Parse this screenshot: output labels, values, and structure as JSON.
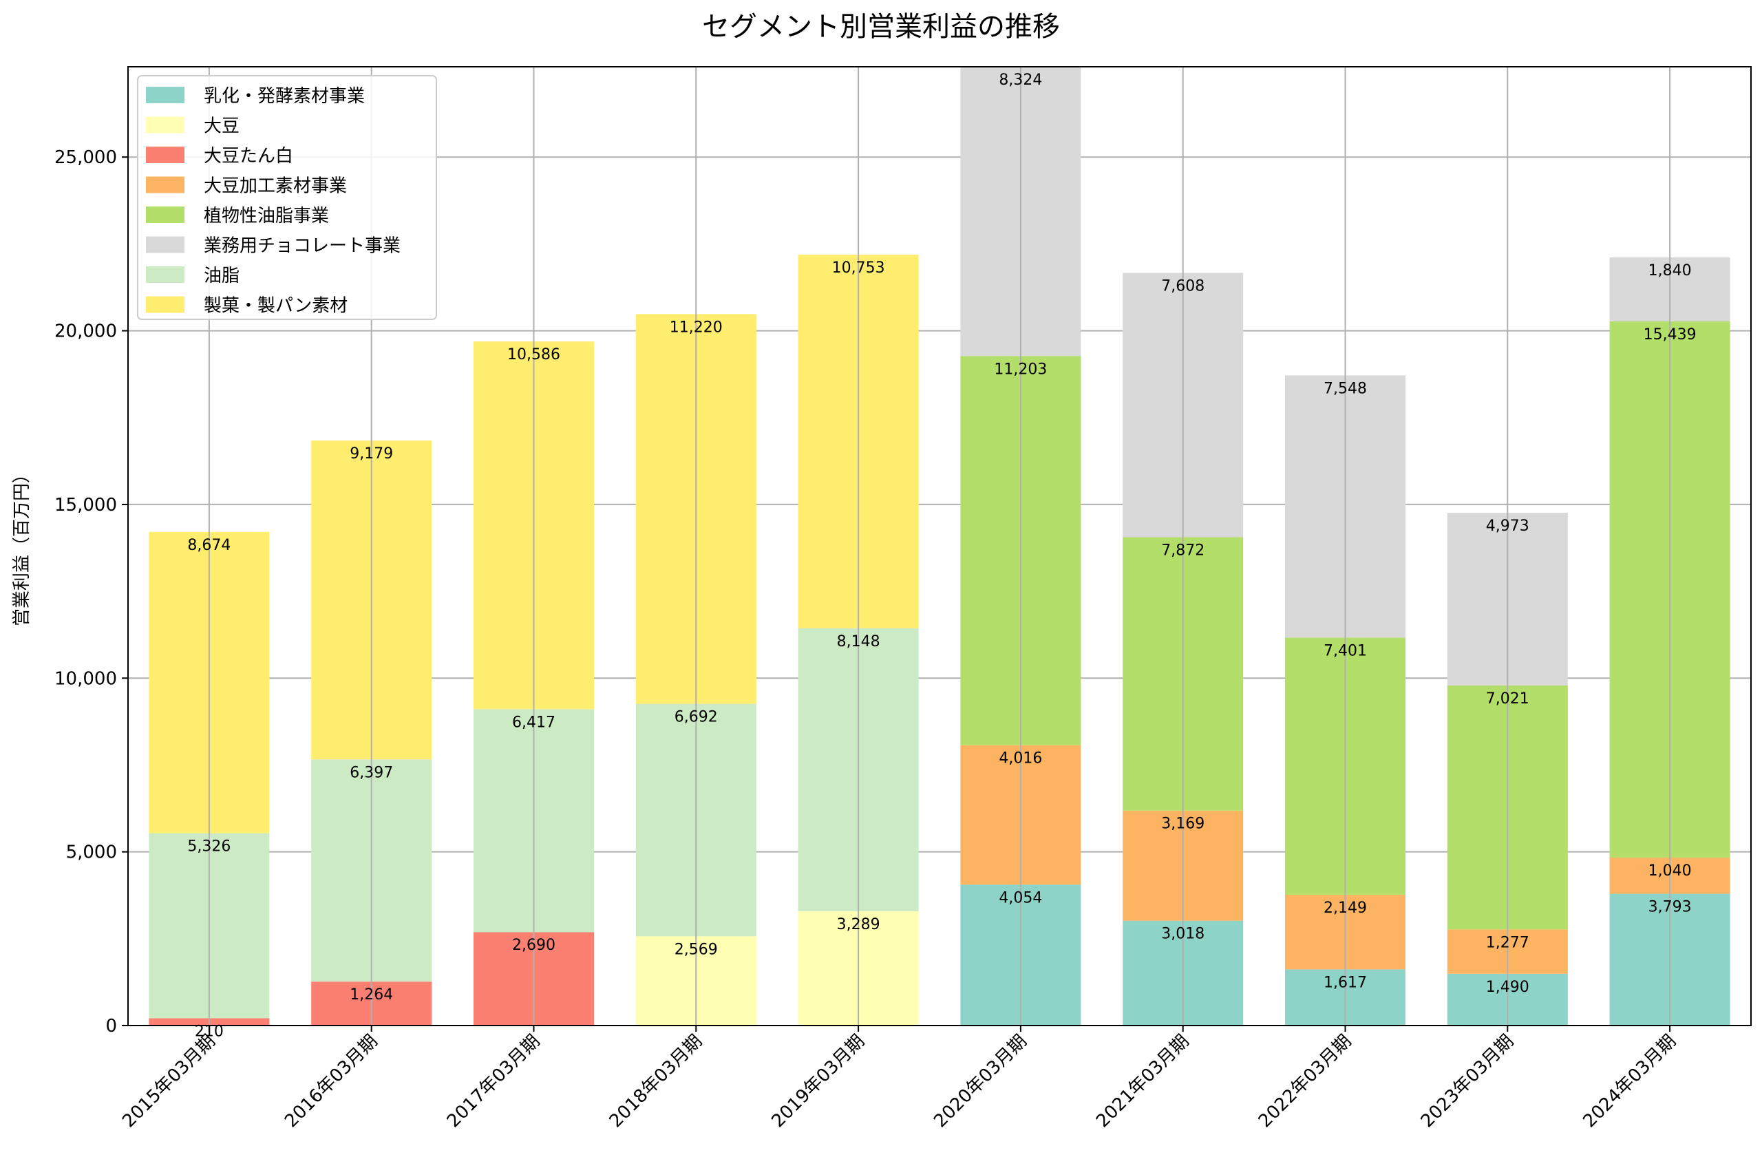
{
  "chart_data": {
    "type": "bar",
    "stacked": true,
    "title": "セグメント別営業利益の推移",
    "xlabel": "",
    "ylabel": "営業利益（百万円）",
    "ylim": [
      0,
      27600
    ],
    "yticks": [
      0,
      5000,
      10000,
      15000,
      20000,
      25000
    ],
    "ytick_labels": [
      "0",
      "5,000",
      "10,000",
      "15,000",
      "20,000",
      "25,000"
    ],
    "grid": true,
    "legend_position": "top-left",
    "categories": [
      "2015年03月期",
      "2016年03月期",
      "2017年03月期",
      "2018年03月期",
      "2019年03月期",
      "2020年03月期",
      "2021年03月期",
      "2022年03月期",
      "2023年03月期",
      "2024年03月期"
    ],
    "series": [
      {
        "name": "乳化・発酵素材事業",
        "color": "#8dd3c7",
        "values": [
          0,
          0,
          0,
          0,
          0,
          4054,
          3018,
          1617,
          1490,
          3793
        ],
        "labels": [
          "",
          "",
          "",
          "",
          "",
          "4,054",
          "3,018",
          "1,617",
          "1,490",
          "3,793"
        ]
      },
      {
        "name": "大豆",
        "color": "#ffffb3",
        "values": [
          0,
          0,
          0,
          2569,
          3289,
          0,
          0,
          0,
          0,
          0
        ],
        "labels": [
          "",
          "",
          "",
          "2,569",
          "3,289",
          "",
          "",
          "",
          "",
          ""
        ]
      },
      {
        "name": "大豆たん白",
        "color": "#fb8072",
        "values": [
          210,
          1264,
          2690,
          0,
          0,
          0,
          0,
          0,
          0,
          0
        ],
        "labels": [
          "210",
          "1,264",
          "2,690",
          "",
          "",
          "",
          "",
          "",
          "",
          ""
        ]
      },
      {
        "name": "大豆加工素材事業",
        "color": "#fdb462",
        "values": [
          0,
          0,
          0,
          0,
          0,
          4016,
          3169,
          2149,
          1277,
          1040
        ],
        "labels": [
          "",
          "",
          "",
          "",
          "",
          "4,016",
          "3,169",
          "2,149",
          "1,277",
          "1,040"
        ]
      },
      {
        "name": "植物性油脂事業",
        "color": "#b3de69",
        "values": [
          0,
          0,
          0,
          0,
          0,
          11203,
          7872,
          7401,
          7021,
          15439
        ],
        "labels": [
          "",
          "",
          "",
          "",
          "",
          "11,203",
          "7,872",
          "7,401",
          "7,021",
          "15,439"
        ]
      },
      {
        "name": "業務用チョコレート事業",
        "color": "#d9d9d9",
        "values": [
          0,
          0,
          0,
          0,
          0,
          8324,
          7608,
          7548,
          4973,
          1840
        ],
        "labels": [
          "",
          "",
          "",
          "",
          "",
          "8,324",
          "7,608",
          "7,548",
          "4,973",
          "1,840"
        ]
      },
      {
        "name": "油脂",
        "color": "#ccebc5",
        "values": [
          5326,
          6397,
          6417,
          6692,
          8148,
          0,
          0,
          0,
          0,
          0
        ],
        "labels": [
          "5,326",
          "6,397",
          "6,417",
          "6,692",
          "8,148",
          "",
          "",
          "",
          "",
          ""
        ]
      },
      {
        "name": "製菓・製パン素材",
        "color": "#ffed6f",
        "values": [
          8674,
          9179,
          10586,
          11220,
          10753,
          0,
          0,
          0,
          0,
          0
        ],
        "labels": [
          "8,674",
          "9,179",
          "10,586",
          "11,220",
          "10,753",
          "",
          "",
          "",
          "",
          ""
        ]
      }
    ]
  }
}
